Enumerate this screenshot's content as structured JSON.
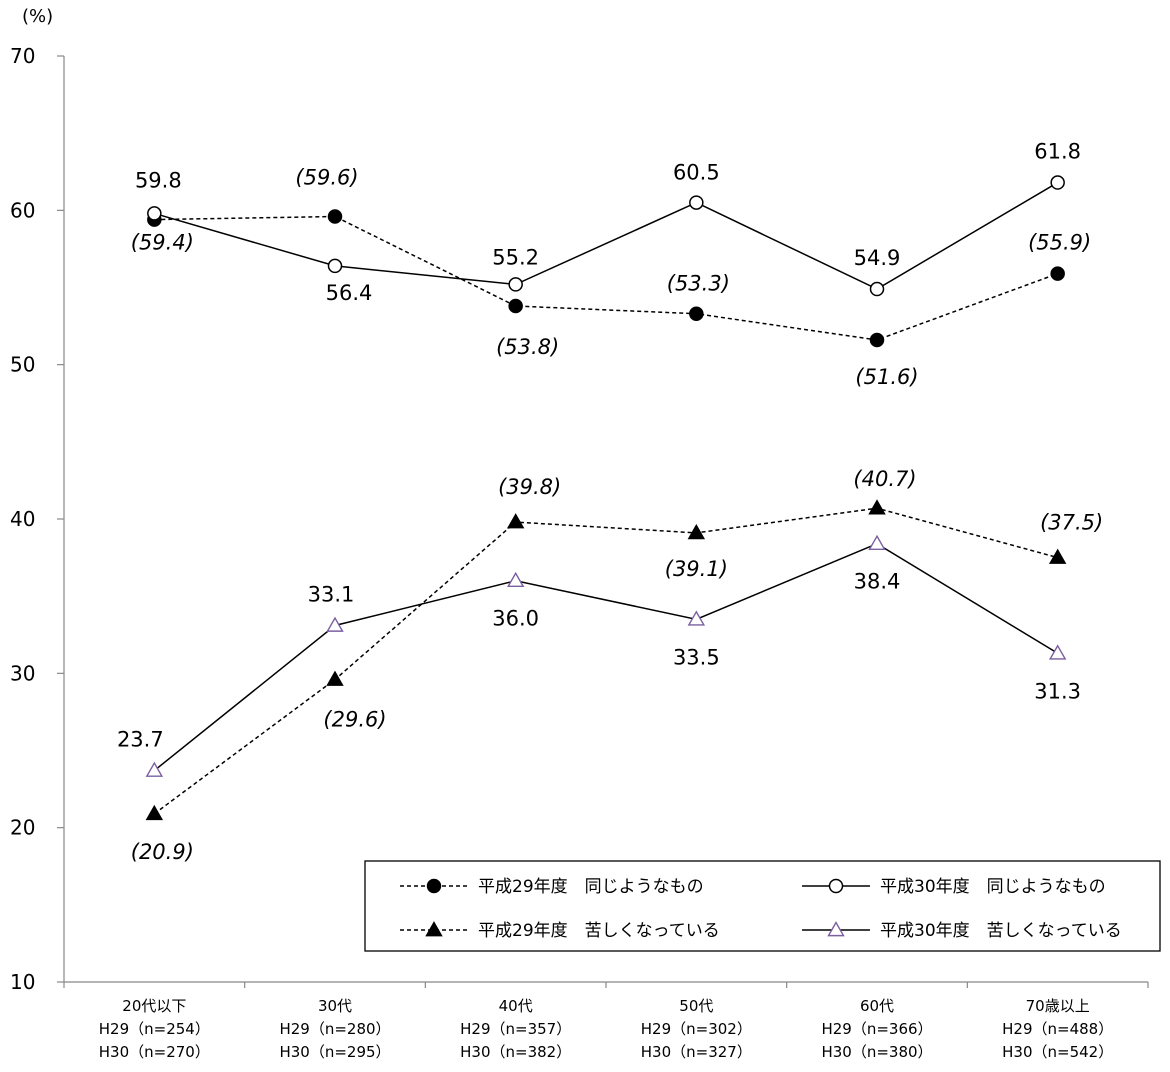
{
  "chart_data": {
    "type": "line",
    "unit_label": "(%)",
    "ylim": [
      10,
      70
    ],
    "yticks": [
      "10",
      "20",
      "30",
      "40",
      "50",
      "60",
      "70"
    ],
    "categories": [
      [
        "20代以下",
        "H29（n=254）",
        "H30（n=270）"
      ],
      [
        "30代",
        "H29（n=280）",
        "H30（n=295）"
      ],
      [
        "40代",
        "H29（n=357）",
        "H30（n=382）"
      ],
      [
        "50代",
        "H29（n=302）",
        "H30（n=327）"
      ],
      [
        "60代",
        "H29（n=366）",
        "H30（n=380）"
      ],
      [
        "70歳以上",
        "H29（n=488）",
        "H30（n=542）"
      ]
    ],
    "series": [
      {
        "name": "平成29年度　同じようなもの",
        "values": [
          59.4,
          59.6,
          53.8,
          53.3,
          51.6,
          55.9
        ],
        "labels": [
          "(59.4)",
          "(59.6)",
          "(53.8)",
          "(53.3)",
          "(51.6)",
          "(55.9)"
        ],
        "marker": "filled-circle",
        "line": "dashed",
        "color": "#000000"
      },
      {
        "name": "平成30年度　同じようなもの",
        "values": [
          59.8,
          56.4,
          55.2,
          60.5,
          54.9,
          61.8
        ],
        "labels": [
          "59.8",
          "56.4",
          "55.2",
          "60.5",
          "54.9",
          "61.8"
        ],
        "marker": "open-circle",
        "line": "solid",
        "color": "#000000"
      },
      {
        "name": "平成29年度　苦しくなっている",
        "values": [
          20.9,
          29.6,
          39.8,
          39.1,
          40.7,
          37.5
        ],
        "labels": [
          "(20.9)",
          "(29.6)",
          "(39.8)",
          "(39.1)",
          "(40.7)",
          "(37.5)"
        ],
        "marker": "filled-triangle",
        "line": "dashed",
        "color": "#000000"
      },
      {
        "name": "平成30年度　苦しくなっている",
        "values": [
          23.7,
          33.1,
          36.0,
          33.5,
          38.4,
          31.3
        ],
        "labels": [
          "23.7",
          "33.1",
          "36.0",
          "33.5",
          "38.4",
          "31.3"
        ],
        "marker": "open-triangle",
        "line": "solid",
        "color": "#000000",
        "marker_color": "#7a5fa0"
      }
    ],
    "legend": "bottom-right, boxed, 2 columns",
    "grid": false
  }
}
